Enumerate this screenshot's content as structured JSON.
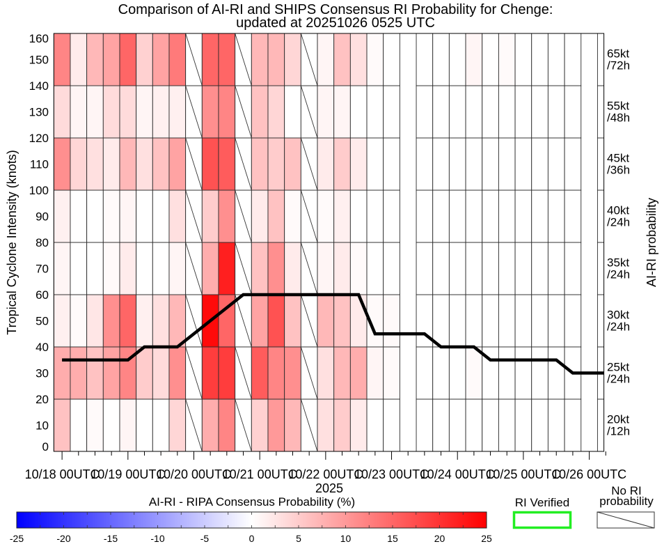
{
  "chart_data": {
    "type": "heatmap",
    "title": [
      "Comparison of AI-RI and SHIPS Consensus RI Probability for Chenge:",
      "updated at 20251026 0525 UTC"
    ],
    "ylabel": "Tropical Cyclone Intensity (knots)",
    "ylabel_right": "AI-RI probability",
    "xlabel": "2025",
    "ylim": [
      0,
      160
    ],
    "yticks": [
      0,
      10,
      20,
      30,
      40,
      50,
      60,
      70,
      80,
      90,
      100,
      110,
      120,
      130,
      140,
      150,
      160
    ],
    "xtick_labels": [
      "10/18 00UTC",
      "10/19 00UTC",
      "10/20 00UTC",
      "10/21 00UTC",
      "10/22 00UTC",
      "10/23 00UTC",
      "10/24 00UTC",
      "10/25 00UTC",
      "10/26 00UTC"
    ],
    "times": [
      "10/18 00",
      "10/18 06",
      "10/18 12",
      "10/18 18",
      "10/19 00",
      "10/19 06",
      "10/19 12",
      "10/19 18",
      "10/20 00",
      "10/20 06",
      "10/20 12",
      "10/20 18",
      "10/21 00",
      "10/21 06",
      "10/21 12",
      "10/21 18",
      "10/22 00",
      "10/22 06",
      "10/22 12",
      "10/22 18",
      "10/23 00",
      "10/23 06",
      "10/23 12",
      "10/23 18",
      "10/24 00",
      "10/24 06",
      "10/24 12",
      "10/24 18",
      "10/25 00",
      "10/25 06",
      "10/25 12",
      "10/25 18",
      "10/26 00",
      "10/26 06"
    ],
    "ri_thresholds": [
      {
        "label": [
          "20kt",
          "/12h"
        ],
        "band": [
          0,
          20
        ]
      },
      {
        "label": [
          "25kt",
          "/24h"
        ],
        "band": [
          20,
          40
        ]
      },
      {
        "label": [
          "30kt",
          "/24h"
        ],
        "band": [
          40,
          60
        ]
      },
      {
        "label": [
          "35kt",
          "/24h"
        ],
        "band": [
          60,
          80
        ]
      },
      {
        "label": [
          "40kt",
          "/24h"
        ],
        "band": [
          80,
          100
        ]
      },
      {
        "label": [
          "45kt",
          "/36h"
        ],
        "band": [
          100,
          120
        ]
      },
      {
        "label": [
          "55kt",
          "/48h"
        ],
        "band": [
          120,
          140
        ]
      },
      {
        "label": [
          "65kt",
          "/72h"
        ],
        "band": [
          140,
          160
        ]
      }
    ],
    "probability_difference_by_time": [
      [
        6,
        8,
        1.5,
        1,
        1.5,
        11,
        3.5,
        12
      ],
      [
        0,
        8,
        0.5,
        0,
        0,
        4,
        1,
        2
      ],
      [
        0.5,
        6,
        2.5,
        0,
        0,
        3,
        1,
        7
      ],
      [
        0,
        9,
        11,
        0.5,
        0.5,
        2,
        3.5,
        9
      ],
      [
        1,
        12,
        15,
        2,
        1,
        7,
        3.5,
        15
      ],
      [
        0,
        5,
        1.5,
        0,
        0,
        3,
        1,
        4.5
      ],
      [
        0,
        3.5,
        3,
        0,
        0,
        6,
        1.5,
        9
      ],
      [
        4,
        11,
        7,
        1,
        3,
        9,
        1.5,
        13
      ],
      "no_ri_probability",
      [
        8,
        19,
        24,
        8,
        5,
        17,
        11,
        15
      ],
      [
        12,
        19,
        15,
        22,
        11,
        16,
        12,
        15
      ],
      "no_ri_probability",
      [
        4.5,
        16,
        9,
        6,
        2,
        6,
        6,
        7
      ],
      [
        10,
        12,
        17,
        11,
        6,
        5,
        4,
        7
      ],
      [
        7,
        11,
        6,
        2,
        0.5,
        6,
        0,
        4
      ],
      "no_ri_probability",
      [
        3,
        3,
        7,
        1,
        0.5,
        2,
        1,
        1
      ],
      [
        5,
        7,
        6,
        2,
        1.5,
        5,
        1,
        6
      ],
      [
        2,
        8,
        2,
        0.5,
        0,
        2,
        0,
        3
      ],
      [
        0,
        1,
        0.5,
        0,
        0,
        0,
        0,
        0.5
      ],
      [
        0,
        0.5,
        0.5,
        0,
        0,
        0,
        0,
        0
      ],
      null,
      [
        0,
        0,
        0,
        0,
        0,
        0,
        0,
        0
      ],
      [
        0,
        0,
        0,
        0,
        0,
        0,
        0,
        0
      ],
      [
        0,
        0,
        0,
        0,
        0,
        0,
        0,
        0
      ],
      [
        0,
        0.5,
        0,
        0,
        0,
        0,
        0,
        1
      ],
      [
        0,
        0,
        0,
        0,
        0,
        0,
        0,
        0
      ],
      [
        0,
        0,
        0,
        0,
        0,
        0,
        0,
        0.5
      ],
      [
        0,
        0,
        0,
        0,
        0,
        0,
        0,
        0
      ],
      [
        0,
        0,
        0,
        0,
        0,
        0,
        0,
        0
      ],
      [
        0,
        0,
        0,
        0,
        0,
        0,
        0,
        0
      ],
      [
        0,
        0,
        0,
        0,
        0,
        0,
        0,
        0
      ],
      null,
      [
        0,
        0,
        0,
        0,
        0,
        0,
        0,
        0
      ]
    ],
    "intensity_kt": [
      35,
      35,
      35,
      35,
      35,
      40,
      40,
      40,
      45,
      50,
      55,
      60,
      60,
      60,
      60,
      60,
      60,
      60,
      60,
      45,
      45,
      45,
      45,
      40,
      40,
      40,
      35,
      35,
      35,
      35,
      35,
      30,
      30,
      30
    ],
    "intensity_line_color": "#000000",
    "colorbar": {
      "title": "AI-RI - RIPA Consensus Probability (%)",
      "range": [
        -25,
        25
      ],
      "tick_labels": [
        "-25",
        "-20",
        "-15",
        "-10",
        "-5",
        "0",
        "5",
        "10",
        "15",
        "20",
        "25"
      ],
      "colors": {
        "min": "#0000ff",
        "mid": "#ffffff",
        "max": "#ff0000"
      }
    },
    "legend": {
      "ri_verified": {
        "label": "RI Verified",
        "color": "#22ee22"
      },
      "no_ri": {
        "label": [
          "No RI",
          "probability"
        ]
      }
    }
  }
}
